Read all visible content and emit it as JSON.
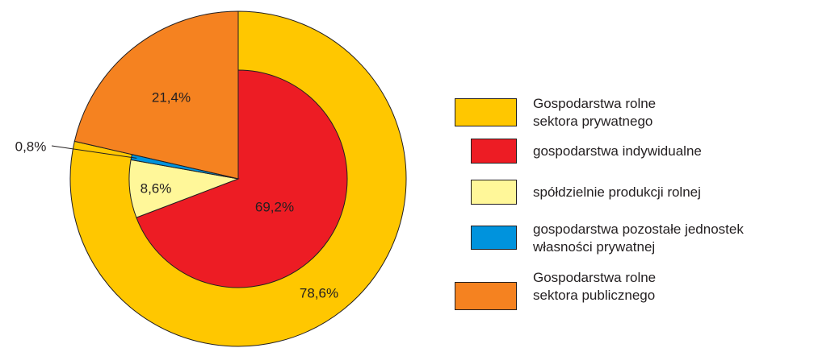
{
  "chart_data": {
    "type": "pie",
    "categories": [
      "Gospodarstwa rolne\nsektora prywatnego",
      "gospodarstwa indywidualne",
      "spółdzielnie produkcji rolnej",
      "gospodarstwa pozostałe jednostek\nwłasności prywatnej",
      "Gospodarstwa rolne\nsektora publicznego"
    ],
    "values": [
      78.6,
      69.2,
      8.6,
      0.8,
      21.4
    ],
    "value_labels": [
      "78,6%",
      "69,2%",
      "8,6%",
      "0,8%",
      "21,4%"
    ],
    "colors": [
      "#ffc700",
      "#ed1c24",
      "#fff799",
      "#0093dd",
      "#f58220"
    ],
    "rings": [
      "outer",
      "inner",
      "inner",
      "inner",
      "full"
    ]
  }
}
